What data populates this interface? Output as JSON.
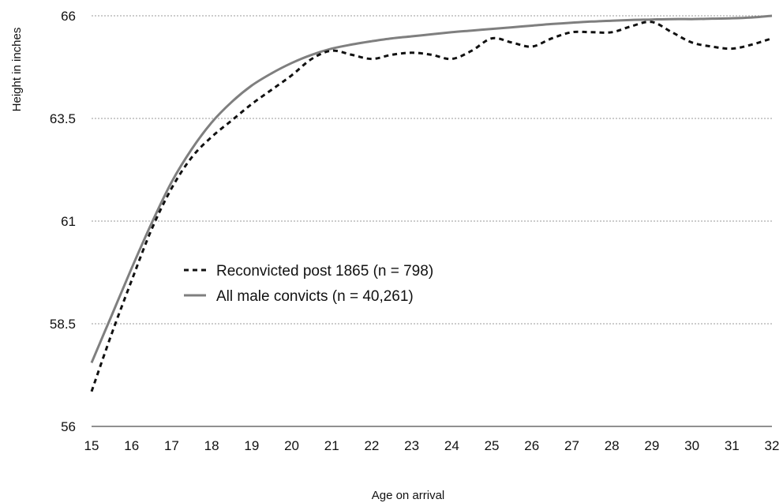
{
  "chart_data": {
    "type": "line",
    "title": "",
    "xlabel": "Age on arrival",
    "ylabel": "Height in inches",
    "xlim": [
      15,
      32
    ],
    "ylim": [
      56,
      66
    ],
    "x_ticks": [
      "15",
      "16",
      "17",
      "18",
      "19",
      "20",
      "21",
      "22",
      "23",
      "24",
      "25",
      "26",
      "27",
      "28",
      "29",
      "30",
      "31",
      "32"
    ],
    "y_ticks": [
      "56",
      "58.5",
      "61",
      "63.5",
      "66"
    ],
    "grid": true,
    "legend_position": "center-left",
    "series": [
      {
        "name": "Reconvicted post 1865 (n = 798)",
        "style": "dashed",
        "color": "#111111",
        "x": [
          15,
          15.5,
          16,
          16.5,
          17,
          17.5,
          18,
          18.5,
          19,
          19.5,
          20,
          20.5,
          21,
          21.5,
          22,
          22.5,
          23,
          23.5,
          24,
          24.5,
          25,
          25.5,
          26,
          26.5,
          27,
          27.5,
          28,
          28.5,
          29,
          29.5,
          30,
          30.5,
          31,
          31.5,
          32
        ],
        "y": [
          56.85,
          58.25,
          59.55,
          60.8,
          61.8,
          62.55,
          63.05,
          63.45,
          63.85,
          64.2,
          64.55,
          64.95,
          65.15,
          65.05,
          64.95,
          65.05,
          65.1,
          65.05,
          64.95,
          65.15,
          65.45,
          65.35,
          65.25,
          65.45,
          65.6,
          65.6,
          65.6,
          65.75,
          65.85,
          65.6,
          65.35,
          65.25,
          65.2,
          65.3,
          65.45
        ]
      },
      {
        "name": "All male convicts (n = 40,261)",
        "style": "solid",
        "color": "#7f7f7f",
        "x": [
          15,
          15.5,
          16,
          16.5,
          17,
          17.5,
          18,
          18.5,
          19,
          19.5,
          20,
          20.5,
          21,
          21.5,
          22,
          22.5,
          23,
          23.5,
          24,
          24.5,
          25,
          25.5,
          26,
          26.5,
          27,
          27.5,
          28,
          28.5,
          29,
          29.5,
          30,
          30.5,
          31,
          31.5,
          32
        ],
        "y": [
          57.55,
          58.7,
          59.85,
          60.95,
          61.95,
          62.75,
          63.4,
          63.9,
          64.3,
          64.6,
          64.85,
          65.05,
          65.2,
          65.3,
          65.38,
          65.45,
          65.5,
          65.55,
          65.6,
          65.64,
          65.68,
          65.72,
          65.76,
          65.8,
          65.83,
          65.86,
          65.88,
          65.9,
          65.91,
          65.92,
          65.92,
          65.93,
          65.94,
          65.96,
          66.0
        ]
      }
    ]
  }
}
